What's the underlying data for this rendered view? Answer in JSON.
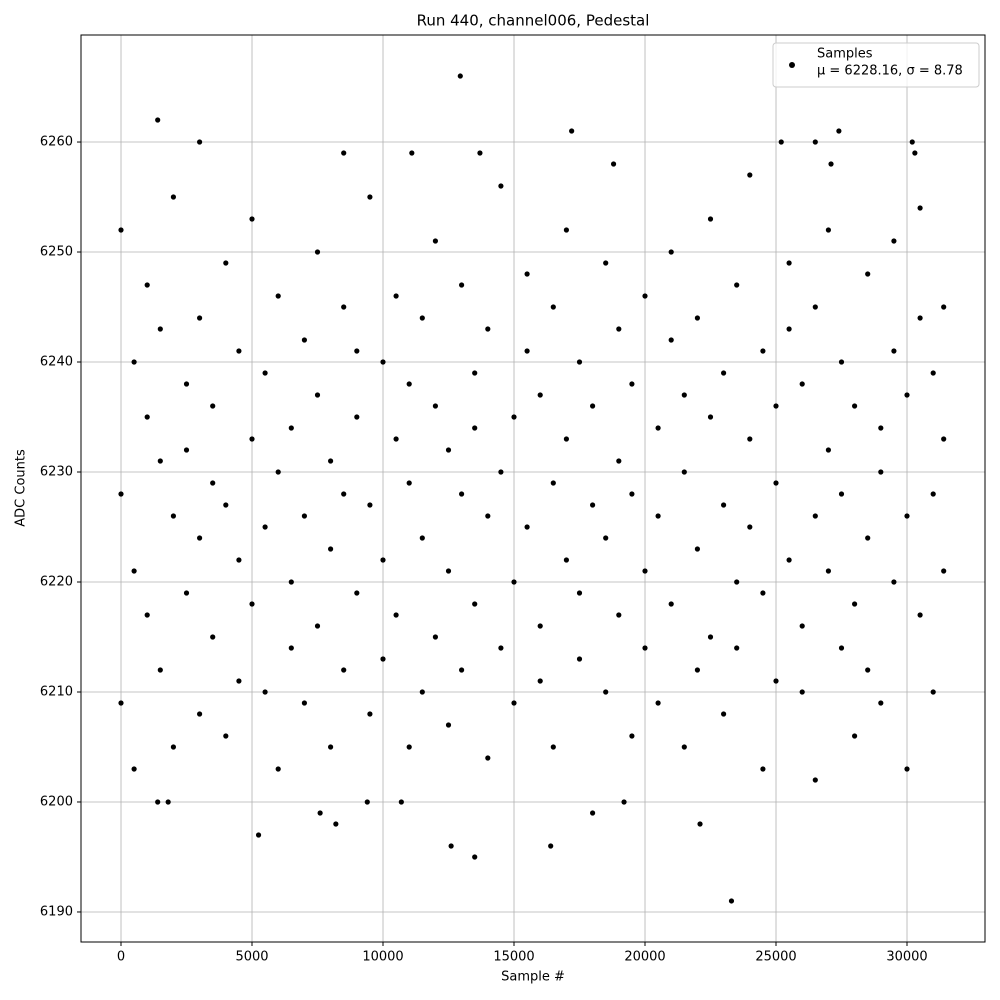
{
  "chart_data": {
    "type": "scatter",
    "title": "Run 440, channel006, Pedestal",
    "xlabel": "Sample #",
    "ylabel": "ADC Counts",
    "xlim": [
      -1527,
      32977
    ],
    "ylim": [
      6187.27,
      6269.73
    ],
    "xticks": [
      0,
      5000,
      10000,
      15000,
      20000,
      25000,
      30000
    ],
    "yticks": [
      6190,
      6200,
      6210,
      6220,
      6230,
      6240,
      6250,
      6260
    ],
    "grid": true,
    "legend": "upper right",
    "legend_note": "μ = 6228.16, σ = 8.78",
    "series": [
      {
        "name": "Samples",
        "color": "#000000",
        "x": [
          0,
          0,
          0,
          500,
          500,
          500,
          1000,
          1000,
          1000,
          1500,
          1500,
          1500,
          2000,
          2000,
          2000,
          2500,
          2500,
          2500,
          3000,
          3000,
          3000,
          3500,
          3500,
          3500,
          4000,
          4000,
          4000,
          4500,
          4500,
          4500,
          5000,
          5000,
          5000,
          5500,
          5500,
          5500,
          6000,
          6000,
          6000,
          6500,
          6500,
          6500,
          7000,
          7000,
          7000,
          7500,
          7500,
          7500,
          8000,
          8000,
          8000,
          8500,
          8500,
          8500,
          9000,
          9000,
          9000,
          9500,
          9500,
          9500,
          10000,
          10000,
          10000,
          10500,
          10500,
          10500,
          11000,
          11000,
          11000,
          11500,
          11500,
          11500,
          12000,
          12000,
          12000,
          12500,
          12500,
          12500,
          13000,
          13000,
          13000,
          13500,
          13500,
          13500,
          14000,
          14000,
          14000,
          14500,
          14500,
          14500,
          15000,
          15000,
          15000,
          15500,
          15500,
          15500,
          16000,
          16000,
          16000,
          16500,
          16500,
          16500,
          17000,
          17000,
          17000,
          17500,
          17500,
          17500,
          18000,
          18000,
          18000,
          18500,
          18500,
          18500,
          19000,
          19000,
          19000,
          19500,
          19500,
          19500,
          20000,
          20000,
          20000,
          20500,
          20500,
          20500,
          21000,
          21000,
          21000,
          21500,
          21500,
          21500,
          22000,
          22000,
          22000,
          22500,
          22500,
          22500,
          23000,
          23000,
          23000,
          23500,
          23500,
          23500,
          24000,
          24000,
          24000,
          24500,
          24500,
          24500,
          25000,
          25000,
          25000,
          25500,
          25500,
          25500,
          26000,
          26000,
          26000,
          26500,
          26500,
          26500,
          27000,
          27000,
          27000,
          27500,
          27500,
          27500,
          28000,
          28000,
          28000,
          28500,
          28500,
          28500,
          29000,
          29000,
          29000,
          29500,
          29500,
          29500,
          30000,
          30000,
          30000,
          30500,
          30500,
          30500,
          31000,
          31000,
          31000,
          31400,
          31400,
          31400,
          1400,
          3000,
          12950,
          17200,
          23300,
          13500,
          12600,
          16400,
          5250,
          8200,
          7600,
          1400,
          1800,
          9400,
          10700,
          19200,
          22100,
          25200,
          26500,
          27400,
          30200,
          30300,
          8500,
          11100,
          13700,
          18800,
          27100
        ],
        "values": [
          6252,
          6228,
          6209,
          6240,
          6221,
          6203,
          6235,
          6217,
          6247,
          6231,
          6212,
          6243,
          6255,
          6226,
          6205,
          6238,
          6219,
          6232,
          6244,
          6224,
          6208,
          6236,
          6215,
          6229,
          6249,
          6227,
          6206,
          6241,
          6222,
          6211,
          6233,
          6218,
          6253,
          6239,
          6225,
          6210,
          6246,
          6230,
          6203,
          6234,
          6220,
          6214,
          6242,
          6226,
          6209,
          6237,
          6216,
          6250,
          6231,
          6223,
          6205,
          6245,
          6228,
          6212,
          6235,
          6219,
          6241,
          6255,
          6227,
          6208,
          6240,
          6222,
          6213,
          6233,
          6217,
          6246,
          6238,
          6229,
          6205,
          6244,
          6224,
          6210,
          6236,
          6215,
          6251,
          6232,
          6221,
          6207,
          6247,
          6228,
          6212,
          6239,
          6218,
          6234,
          6243,
          6226,
          6204,
          6256,
          6230,
          6214,
          6235,
          6220,
          6209,
          6241,
          6225,
          6248,
          6237,
          6216,
          6211,
          6245,
          6229,
          6205,
          6233,
          6222,
          6252,
          6240,
          6219,
          6213,
          6236,
          6227,
          6199,
          6249,
          6224,
          6210,
          6231,
          6217,
          6243,
          6238,
          6228,
          6206,
          6246,
          6221,
          6214,
          6234,
          6226,
          6209,
          6242,
          6218,
          6250,
          6237,
          6230,
          6205,
          6244,
          6223,
          6212,
          6235,
          6215,
          6253,
          6239,
          6227,
          6208,
          6247,
          6220,
          6214,
          6233,
          6225,
          6257,
          6241,
          6219,
          6203,
          6236,
          6229,
          6211,
          6243,
          6222,
          6249,
          6238,
          6216,
          6210,
          6245,
          6226,
          6202,
          6232,
          6221,
          6252,
          6240,
          6228,
          6214,
          6236,
          6218,
          6206,
          6248,
          6224,
          6212,
          6234,
          6230,
          6209,
          6241,
          6220,
          6251,
          6237,
          6226,
          6203,
          6244,
          6217,
          6254,
          6239,
          6228,
          6210,
          6233,
          6221,
          6245,
          6262,
          6260,
          6266,
          6261,
          6191,
          6195,
          6196,
          6196,
          6197,
          6198,
          6199,
          6200,
          6200,
          6200,
          6200,
          6200,
          6198,
          6260,
          6260,
          6261,
          6260,
          6259,
          6259,
          6259,
          6259,
          6258,
          6258
        ]
      }
    ]
  }
}
